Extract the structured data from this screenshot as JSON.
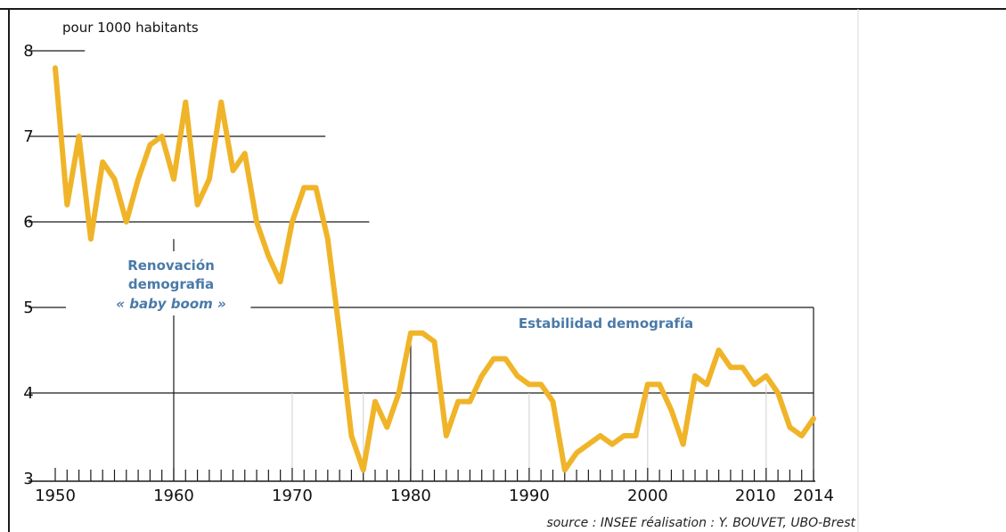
{
  "chart_data": {
    "type": "line",
    "unit_label": "pour 1000 habitants",
    "source": "source : INSEE  réalisation : Y. BOUVET, UBO-Brest",
    "xlim": [
      1950,
      2014
    ],
    "ylim": [
      3,
      8
    ],
    "x_ticks": [
      1950,
      1960,
      1970,
      1980,
      1990,
      2000,
      2010,
      2014
    ],
    "y_ticks": [
      3,
      4,
      5,
      6,
      7,
      8
    ],
    "line_color": "#f0b429",
    "annotations": {
      "renovacion_line1": "Renovación",
      "renovacion_line2": "demografia",
      "renovacion_line3": "« baby boom »",
      "estabilidad": "Estabilidad demografía"
    },
    "annotation_color": "#4a7aa8",
    "x": [
      1950,
      1951,
      1952,
      1953,
      1954,
      1955,
      1956,
      1957,
      1958,
      1959,
      1960,
      1961,
      1962,
      1963,
      1964,
      1965,
      1966,
      1967,
      1968,
      1969,
      1970,
      1971,
      1972,
      1973,
      1974,
      1975,
      1976,
      1977,
      1978,
      1979,
      1980,
      1981,
      1982,
      1983,
      1984,
      1985,
      1986,
      1987,
      1988,
      1989,
      1990,
      1991,
      1992,
      1993,
      1994,
      1995,
      1996,
      1997,
      1998,
      1999,
      2000,
      2001,
      2002,
      2003,
      2004,
      2005,
      2006,
      2007,
      2008,
      2009,
      2010,
      2011,
      2012,
      2013,
      2014
    ],
    "series": [
      {
        "values": [
          7.8,
          6.2,
          7.0,
          5.8,
          6.7,
          6.5,
          6.0,
          6.5,
          6.9,
          7.0,
          6.5,
          7.4,
          6.2,
          6.5,
          7.4,
          6.6,
          6.8,
          6.0,
          5.6,
          5.3,
          6.0,
          6.4,
          6.4,
          5.8,
          4.7,
          3.5,
          3.1,
          3.9,
          3.6,
          4.0,
          4.7,
          4.7,
          4.6,
          3.5,
          3.9,
          3.9,
          4.2,
          4.4,
          4.4,
          4.2,
          4.1,
          4.1,
          3.9,
          3.1,
          3.3,
          3.4,
          3.5,
          3.4,
          3.5,
          3.5,
          4.1,
          4.1,
          3.8,
          3.4,
          4.2,
          4.1,
          4.5,
          4.3,
          4.3,
          4.1,
          4.2,
          4.0,
          3.6,
          3.5,
          3.7
        ]
      }
    ]
  }
}
